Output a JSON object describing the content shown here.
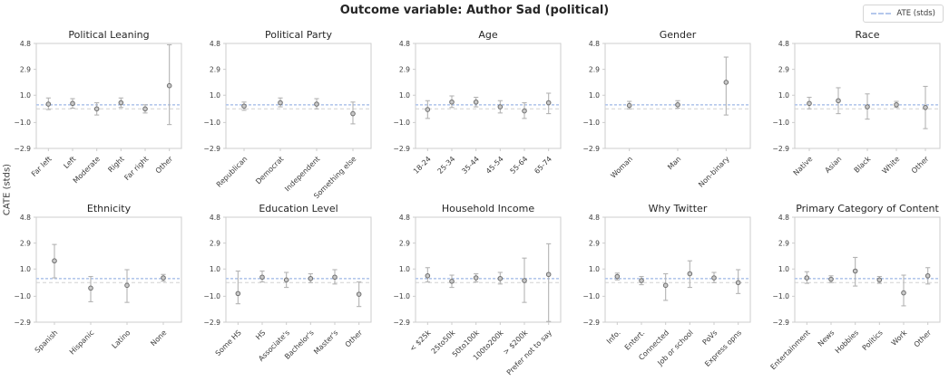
{
  "header": {
    "title": "Outcome variable: Author Sad (political)"
  },
  "legend": {
    "label": "ATE (stds)"
  },
  "chart_data": {
    "type": "scatter",
    "subtype": "errorbar-small-multiples",
    "title": "Outcome variable: Author Sad (political)",
    "ylabel": "CATE (stds)",
    "legend_label": "ATE (stds)",
    "legend_position": "top-right",
    "grid": "off",
    "ylim": [
      -2.9,
      4.8
    ],
    "ytick_values": [
      4.8,
      2.9,
      1.0,
      -1.0,
      -2.9
    ],
    "ytick_labels": [
      "4.8",
      "2.9",
      "1.0",
      "−1.0",
      "−2.9"
    ],
    "ate_line": 0.3,
    "zero_line": 0.0,
    "colors": {
      "ate_line": "#b5c8ec",
      "zero_line": "#d2d2d2",
      "error_bar": "#b3b3b3",
      "marker_fill": "#c9c9c9",
      "marker_edge": "#6f6f6f",
      "axis_frame": "#cccccc",
      "tick_text": "#3b3b3b",
      "title_text": "#262626"
    },
    "panels": [
      {
        "slug": "political-leaning",
        "title": "Political Leaning",
        "categories": [
          "Far left",
          "Left",
          "Moderate",
          "Right",
          "Far right",
          "Other"
        ],
        "values": [
          0.35,
          0.4,
          0.0,
          0.45,
          0.0,
          1.7
        ],
        "err_lo": [
          -0.05,
          0.05,
          -0.45,
          0.1,
          -0.3,
          -1.15
        ],
        "err_hi": [
          0.8,
          0.75,
          0.45,
          0.8,
          0.3,
          4.7
        ]
      },
      {
        "slug": "political-party",
        "title": "Political Party",
        "categories": [
          "Republican",
          "Democrat",
          "Independent",
          "Something else"
        ],
        "values": [
          0.2,
          0.45,
          0.35,
          -0.35
        ],
        "err_lo": [
          -0.1,
          0.15,
          0.0,
          -1.1
        ],
        "err_hi": [
          0.5,
          0.8,
          0.75,
          0.5
        ]
      },
      {
        "slug": "age",
        "title": "Age",
        "categories": [
          "18-24",
          "25-34",
          "35-44",
          "45-54",
          "55-64",
          "65-74"
        ],
        "values": [
          -0.05,
          0.5,
          0.5,
          0.15,
          -0.15,
          0.45
        ],
        "err_lo": [
          -0.7,
          0.1,
          0.15,
          -0.3,
          -0.7,
          -0.35
        ],
        "err_hi": [
          0.6,
          0.95,
          0.85,
          0.6,
          0.45,
          1.15
        ]
      },
      {
        "slug": "gender",
        "title": "Gender",
        "categories": [
          "Woman",
          "Man",
          "Non-binary"
        ],
        "values": [
          0.25,
          0.3,
          1.95
        ],
        "err_lo": [
          0.0,
          0.05,
          -0.45
        ],
        "err_hi": [
          0.55,
          0.6,
          3.8
        ]
      },
      {
        "slug": "race",
        "title": "Race",
        "categories": [
          "Native",
          "Asian",
          "Black",
          "White",
          "Other"
        ],
        "values": [
          0.4,
          0.6,
          0.15,
          0.3,
          0.1
        ],
        "err_lo": [
          0.0,
          -0.35,
          -0.75,
          0.1,
          -1.45
        ],
        "err_hi": [
          0.85,
          1.55,
          1.1,
          0.55,
          1.65
        ]
      },
      {
        "slug": "ethnicity",
        "title": "Ethnicity",
        "categories": [
          "Spanish",
          "Hispanic",
          "Latino",
          "None"
        ],
        "values": [
          1.6,
          -0.4,
          -0.2,
          0.35
        ],
        "err_lo": [
          0.35,
          -1.4,
          -1.45,
          0.1
        ],
        "err_hi": [
          2.8,
          0.45,
          0.95,
          0.6
        ]
      },
      {
        "slug": "education-level",
        "title": "Education Level",
        "categories": [
          "Some HS",
          "HS",
          "Associate's",
          "Bachelor's",
          "Master's",
          "Other"
        ],
        "values": [
          -0.8,
          0.4,
          0.2,
          0.3,
          0.4,
          -0.85
        ],
        "err_lo": [
          -1.55,
          0.05,
          -0.35,
          0.0,
          -0.1,
          -1.75
        ],
        "err_hi": [
          0.85,
          0.85,
          0.75,
          0.65,
          0.95,
          0.05
        ]
      },
      {
        "slug": "household-income",
        "title": "Household Income",
        "categories": [
          "< $25k",
          "25to50k",
          "50to100k",
          "100to200k",
          "> $200k",
          "Prefer not to say"
        ],
        "values": [
          0.5,
          0.1,
          0.35,
          0.3,
          0.15,
          0.6
        ],
        "err_lo": [
          0.05,
          -0.35,
          0.05,
          -0.1,
          -1.45,
          -2.85
        ],
        "err_hi": [
          1.1,
          0.55,
          0.65,
          0.75,
          1.8,
          2.85
        ]
      },
      {
        "slug": "why-twitter",
        "title": "Why Twitter",
        "categories": [
          "Info.",
          "Entert.",
          "Connected",
          "Job or school",
          "PoVs",
          "Express opns"
        ],
        "values": [
          0.45,
          0.15,
          -0.2,
          0.65,
          0.35,
          0.0
        ],
        "err_lo": [
          0.2,
          -0.15,
          -1.3,
          -0.35,
          0.0,
          -0.8
        ],
        "err_hi": [
          0.7,
          0.45,
          0.65,
          1.6,
          0.75,
          0.95
        ]
      },
      {
        "slug": "primary-category-of-content",
        "title": "Primary Category of Content",
        "categories": [
          "Entertainment",
          "News",
          "Hobbies",
          "Politics",
          "Work",
          "Other"
        ],
        "values": [
          0.35,
          0.25,
          0.85,
          0.2,
          -0.75,
          0.5
        ],
        "err_lo": [
          -0.05,
          0.0,
          -0.25,
          -0.05,
          -1.7,
          -0.1
        ],
        "err_hi": [
          0.8,
          0.5,
          1.85,
          0.45,
          0.55,
          1.1
        ]
      }
    ]
  }
}
